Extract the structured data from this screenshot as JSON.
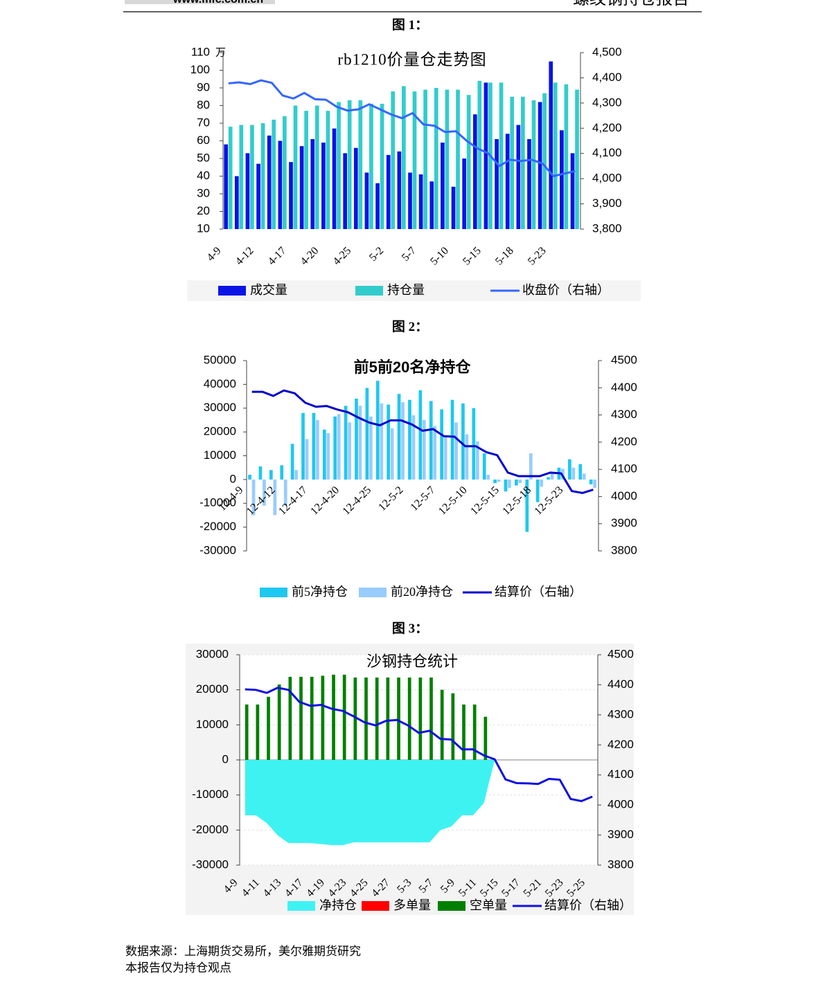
{
  "header": {
    "site": "www.mfc.com.cn",
    "report": "螺纹钢持仓报告"
  },
  "captions": [
    "图 1：",
    "图 2：",
    "图 3："
  ],
  "chart_data": [
    {
      "type": "combo",
      "title": "rb1210价量仓走势图",
      "y_unit": "万",
      "categories": [
        "4-9",
        null,
        null,
        "4-12",
        null,
        null,
        "4-17",
        null,
        null,
        "4-20",
        null,
        null,
        "4-25",
        null,
        null,
        "5-2",
        null,
        null,
        "5-7",
        null,
        null,
        "5-10",
        null,
        null,
        "5-15",
        null,
        null,
        "5-18",
        null,
        null,
        "5-23",
        null,
        null
      ],
      "ylim": [
        10,
        110
      ],
      "yticks": [
        10,
        20,
        30,
        40,
        50,
        60,
        70,
        80,
        90,
        100,
        110
      ],
      "y2lim": [
        3800,
        4500
      ],
      "y2ticks": [
        {
          "value": 3800,
          "label": "3,800"
        },
        {
          "value": 3900,
          "label": "3,900"
        },
        {
          "value": 4000,
          "label": "4,000"
        },
        {
          "value": 4100,
          "label": "4,100"
        },
        {
          "value": 4200,
          "label": "4,200"
        },
        {
          "value": 4300,
          "label": "4,300"
        },
        {
          "value": 4400,
          "label": "4,400"
        },
        {
          "value": 4500,
          "label": "4,500"
        }
      ],
      "grid": false,
      "series": [
        {
          "name": "成交量",
          "type": "bar",
          "color": "#0a14e6",
          "values": [
            58,
            40,
            53,
            47,
            63,
            60,
            48,
            57,
            61,
            59,
            67,
            53,
            56,
            42,
            36,
            52,
            54,
            42,
            41,
            37,
            59,
            34,
            50,
            75,
            93,
            61,
            64,
            69,
            61,
            82,
            105,
            66,
            53
          ]
        },
        {
          "name": "持仓量",
          "type": "bar",
          "color": "#33cccc",
          "values": [
            68,
            69,
            69,
            70,
            72,
            74,
            80,
            77,
            80,
            77,
            82,
            83,
            83,
            81,
            81,
            88,
            91,
            88,
            89,
            90,
            89,
            89,
            86,
            94,
            93,
            93,
            85,
            85,
            83,
            87,
            93,
            92,
            89
          ]
        },
        {
          "name": "收盘价（右轴）",
          "type": "line",
          "axis": "y2",
          "color": "#3366ff",
          "values": [
            4378,
            4382,
            4375,
            4390,
            4380,
            4330,
            4318,
            4340,
            4315,
            4313,
            4285,
            4270,
            4275,
            4295,
            4275,
            4255,
            4240,
            4260,
            4215,
            4210,
            4185,
            4188,
            4150,
            4120,
            4100,
            4050,
            4075,
            4070,
            4075,
            4060,
            4010,
            4020,
            4030
          ]
        }
      ]
    },
    {
      "type": "combo",
      "title": "前5前20名净持仓",
      "categories": [
        "12-4-9",
        null,
        null,
        "12-4-12",
        null,
        null,
        "12-4-17",
        null,
        null,
        "12-4-20",
        null,
        null,
        "12-4-25",
        null,
        null,
        "12-5-2",
        null,
        null,
        "12-5-7",
        null,
        null,
        "12-5-10",
        null,
        null,
        "12-5-15",
        null,
        null,
        "12-5-18",
        null,
        null,
        "12-5-23",
        null,
        null
      ],
      "ylim": [
        -30000,
        50000
      ],
      "yticks": [
        -30000,
        -20000,
        -10000,
        0,
        10000,
        20000,
        30000,
        40000,
        50000
      ],
      "y2lim": [
        3800,
        4500
      ],
      "y2ticks": [
        3800,
        3900,
        4000,
        4100,
        4200,
        4300,
        4400,
        4500
      ],
      "grid": false,
      "series": [
        {
          "name": "前5净持仓",
          "type": "bar",
          "color": "#1ec8f0",
          "values": [
            2000,
            5500,
            4000,
            6000,
            15000,
            28000,
            28000,
            21000,
            26500,
            31000,
            34000,
            38500,
            41500,
            31500,
            36000,
            33500,
            37500,
            33000,
            29500,
            33500,
            32000,
            30000,
            11000,
            -1500,
            -5000,
            -2500,
            -22000,
            -9500,
            1000,
            5000,
            8500,
            6500,
            -2000
          ]
        },
        {
          "name": "前20净持仓",
          "type": "bar",
          "color": "#99ccff",
          "values": [
            -15000,
            -11000,
            -15000,
            -11000,
            4000,
            17000,
            25000,
            19500,
            27500,
            24000,
            31000,
            26500,
            32000,
            21500,
            32500,
            27000,
            25000,
            22500,
            18500,
            24000,
            19000,
            16000,
            2000,
            -1000,
            -3500,
            -1500,
            11000,
            -3000,
            2500,
            4500,
            5000,
            2500,
            -3500
          ]
        },
        {
          "name": "结算价（右轴）",
          "type": "line",
          "axis": "y2",
          "color": "#0000cc",
          "values": [
            4385,
            4385,
            4370,
            4390,
            4380,
            4345,
            4330,
            4333,
            4320,
            4310,
            4290,
            4272,
            4262,
            4280,
            4280,
            4265,
            4242,
            4248,
            4222,
            4220,
            4185,
            4185,
            4163,
            4152,
            4088,
            4075,
            4075,
            4075,
            4088,
            4085,
            4020,
            4013,
            4025
          ]
        }
      ]
    },
    {
      "type": "combo",
      "title": "沙钢持仓统计",
      "categories": [
        "4-9",
        null,
        "4-11",
        null,
        "4-13",
        null,
        "4-17",
        null,
        "4-19",
        null,
        "4-23",
        null,
        "4-25",
        null,
        "4-27",
        null,
        "5-3",
        null,
        "5-7",
        null,
        "5-9",
        null,
        "5-11",
        null,
        "5-15",
        null,
        "5-17",
        null,
        "5-21",
        null,
        "5-23",
        null,
        "5-25"
      ],
      "ylim": [
        -30000,
        30000
      ],
      "yticks": [
        -30000,
        -20000,
        -10000,
        0,
        10000,
        20000,
        30000
      ],
      "y2lim": [
        3800,
        4500
      ],
      "y2ticks": [
        3800,
        3900,
        4000,
        4100,
        4200,
        4300,
        4400,
        4500
      ],
      "grid": true,
      "series": [
        {
          "name": "净持仓",
          "type": "area",
          "color": "#3ff2f2",
          "values": [
            -15800,
            -15800,
            -18000,
            -21500,
            -23700,
            -23700,
            -23700,
            -24000,
            -24300,
            -24300,
            -23500,
            -23500,
            -23500,
            -23500,
            -23500,
            -23500,
            -23500,
            -23500,
            -20000,
            -19000,
            -15800,
            -15800,
            -12300,
            0,
            null,
            null,
            null,
            null,
            null,
            null,
            null,
            null,
            null
          ]
        },
        {
          "name": "多单量",
          "type": "bar",
          "color": "#ff0000",
          "values": [
            0,
            0,
            0,
            0,
            0,
            0,
            0,
            0,
            0,
            0,
            0,
            0,
            0,
            0,
            0,
            0,
            0,
            0,
            0,
            0,
            0,
            0,
            0,
            null,
            null,
            null,
            null,
            null,
            null,
            null,
            null,
            null,
            null
          ]
        },
        {
          "name": "空单量",
          "type": "bar",
          "color": "#008000",
          "values": [
            15800,
            15800,
            18000,
            21500,
            23700,
            23700,
            23700,
            24000,
            24300,
            24300,
            23500,
            23500,
            23500,
            23500,
            23500,
            23500,
            23500,
            23500,
            20000,
            19000,
            15800,
            15800,
            12300,
            null,
            null,
            null,
            null,
            null,
            null,
            null,
            null,
            null,
            null
          ]
        },
        {
          "name": "结算价（右轴）",
          "type": "line",
          "axis": "y2",
          "color": "#1010e0",
          "values": [
            4385,
            4383,
            4373,
            4390,
            4383,
            4343,
            4330,
            4333,
            4320,
            4313,
            4295,
            4275,
            4265,
            4280,
            4283,
            4265,
            4240,
            4247,
            4220,
            4218,
            4185,
            4185,
            4165,
            4152,
            4085,
            4073,
            4072,
            4070,
            4087,
            4084,
            4020,
            4013,
            4028
          ]
        }
      ]
    }
  ],
  "footer": [
    "数据来源：上海期货交易所，美尔雅期货研究",
    "本报告仅为持仓观点"
  ]
}
